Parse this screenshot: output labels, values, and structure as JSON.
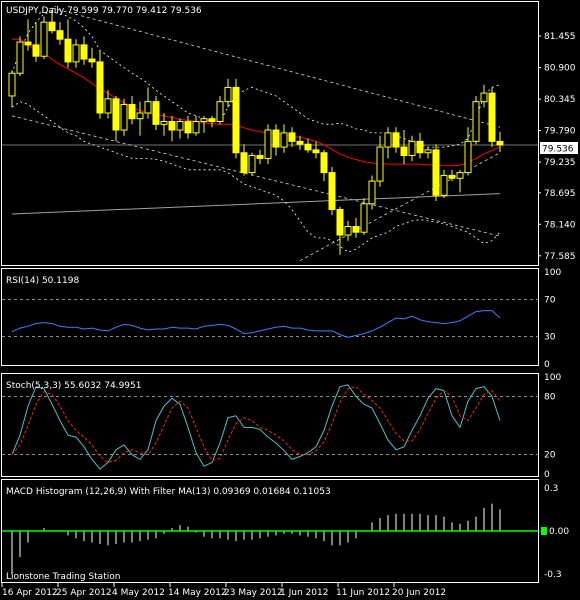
{
  "panels": {
    "main": {
      "label": "USDJPY,Daily  79.599 79.770 79.412 79.536",
      "last_price": "79.536"
    },
    "rsi": {
      "label": "RSI(14) 50.1198"
    },
    "stoch": {
      "label": "Stoch(5,3,3) 55.6032 74.9951"
    },
    "macd": {
      "label": "MACD Histogram (12,26,9) With Filter MA(13) 0.09369 0.01684 0.11053"
    }
  },
  "footer": {
    "watermark": "Lionstone Trading Station"
  },
  "colors": {
    "background": "#000000",
    "frame": "#ffffff",
    "candle": "#ffff00",
    "ma": "#ff0000",
    "bands": "#ffffff",
    "trend_gray": "#a0a0a0",
    "rsi": "#3b7dff",
    "stoch_main": "#4ec3c3",
    "stoch_signal": "#ff2020",
    "macd_hist": "#ffffff",
    "macd_filter": "#00ff00"
  },
  "chart_data": [
    {
      "type": "candlestick",
      "symbol": "USDJPY",
      "timeframe": "Daily",
      "ylim": [
        77.44,
        82.02
      ],
      "y_ticks": [
        "81.455",
        "80.900",
        "80.345",
        "79.790",
        "79.235",
        "78.695",
        "78.140",
        "77.585"
      ],
      "x_ticks": [
        "16 Apr 2012",
        "25 Apr 2012",
        "4 May 2012",
        "14 May 2012",
        "23 May 2012",
        "1 Jun 2012",
        "11 Jun 2012",
        "20 Jun 2012"
      ],
      "candles": [
        {
          "o": 80.4,
          "h": 80.85,
          "l": 80.2,
          "c": 80.8
        },
        {
          "o": 80.8,
          "h": 81.45,
          "l": 80.75,
          "c": 81.35
        },
        {
          "o": 81.35,
          "h": 81.75,
          "l": 81.2,
          "c": 81.3
        },
        {
          "o": 81.3,
          "h": 81.7,
          "l": 81.0,
          "c": 81.1
        },
        {
          "o": 81.1,
          "h": 81.8,
          "l": 81.05,
          "c": 81.7
        },
        {
          "o": 81.7,
          "h": 81.9,
          "l": 81.5,
          "c": 81.55
        },
        {
          "o": 81.55,
          "h": 81.7,
          "l": 81.3,
          "c": 81.4
        },
        {
          "o": 81.4,
          "h": 81.75,
          "l": 80.9,
          "c": 81.0
        },
        {
          "o": 81.0,
          "h": 81.4,
          "l": 80.9,
          "c": 81.3
        },
        {
          "o": 81.3,
          "h": 81.45,
          "l": 80.95,
          "c": 81.05
        },
        {
          "o": 81.05,
          "h": 81.25,
          "l": 80.9,
          "c": 81.0
        },
        {
          "o": 81.0,
          "h": 81.2,
          "l": 80.0,
          "c": 80.1
        },
        {
          "o": 80.1,
          "h": 80.5,
          "l": 80.0,
          "c": 80.35
        },
        {
          "o": 80.35,
          "h": 80.4,
          "l": 79.6,
          "c": 79.8
        },
        {
          "o": 79.8,
          "h": 80.35,
          "l": 79.7,
          "c": 80.25
        },
        {
          "o": 80.25,
          "h": 80.4,
          "l": 79.9,
          "c": 80.0
        },
        {
          "o": 80.0,
          "h": 80.3,
          "l": 79.7,
          "c": 80.1
        },
        {
          "o": 80.1,
          "h": 80.55,
          "l": 80.0,
          "c": 80.3
        },
        {
          "o": 80.3,
          "h": 80.4,
          "l": 79.8,
          "c": 79.9
        },
        {
          "o": 79.9,
          "h": 80.1,
          "l": 79.7,
          "c": 79.95
        },
        {
          "o": 79.95,
          "h": 80.05,
          "l": 79.6,
          "c": 79.8
        },
        {
          "o": 79.8,
          "h": 80.0,
          "l": 79.65,
          "c": 79.95
        },
        {
          "o": 79.95,
          "h": 80.05,
          "l": 79.65,
          "c": 79.75
        },
        {
          "o": 79.75,
          "h": 80.05,
          "l": 79.7,
          "c": 79.95
        },
        {
          "o": 79.95,
          "h": 80.05,
          "l": 79.75,
          "c": 80.0
        },
        {
          "o": 80.0,
          "h": 80.05,
          "l": 79.85,
          "c": 79.95
        },
        {
          "o": 79.95,
          "h": 80.4,
          "l": 79.9,
          "c": 80.3
        },
        {
          "o": 80.3,
          "h": 80.7,
          "l": 80.2,
          "c": 80.55
        },
        {
          "o": 80.55,
          "h": 80.7,
          "l": 79.3,
          "c": 79.4
        },
        {
          "o": 79.4,
          "h": 79.55,
          "l": 79.0,
          "c": 79.05
        },
        {
          "o": 79.05,
          "h": 79.4,
          "l": 79.0,
          "c": 79.35
        },
        {
          "o": 79.35,
          "h": 79.45,
          "l": 79.2,
          "c": 79.3
        },
        {
          "o": 79.3,
          "h": 79.9,
          "l": 79.2,
          "c": 79.8
        },
        {
          "o": 79.8,
          "h": 79.9,
          "l": 79.35,
          "c": 79.5
        },
        {
          "o": 79.5,
          "h": 79.9,
          "l": 79.4,
          "c": 79.75
        },
        {
          "o": 79.75,
          "h": 79.85,
          "l": 79.5,
          "c": 79.6
        },
        {
          "o": 79.6,
          "h": 79.7,
          "l": 79.45,
          "c": 79.55
        },
        {
          "o": 79.55,
          "h": 79.65,
          "l": 79.4,
          "c": 79.45
        },
        {
          "o": 79.45,
          "h": 79.6,
          "l": 79.3,
          "c": 79.4
        },
        {
          "o": 79.4,
          "h": 79.45,
          "l": 78.9,
          "c": 79.05
        },
        {
          "o": 79.05,
          "h": 79.15,
          "l": 78.3,
          "c": 78.4
        },
        {
          "o": 78.4,
          "h": 78.45,
          "l": 77.6,
          "c": 77.95
        },
        {
          "o": 77.95,
          "h": 78.2,
          "l": 77.85,
          "c": 78.1
        },
        {
          "o": 78.1,
          "h": 78.25,
          "l": 77.9,
          "c": 78.0
        },
        {
          "o": 78.0,
          "h": 78.6,
          "l": 77.95,
          "c": 78.5
        },
        {
          "o": 78.5,
          "h": 79.0,
          "l": 78.4,
          "c": 78.9
        },
        {
          "o": 78.9,
          "h": 79.7,
          "l": 78.8,
          "c": 79.5
        },
        {
          "o": 79.5,
          "h": 79.85,
          "l": 79.3,
          "c": 79.75
        },
        {
          "o": 79.75,
          "h": 79.85,
          "l": 79.4,
          "c": 79.5
        },
        {
          "o": 79.5,
          "h": 79.8,
          "l": 79.2,
          "c": 79.35
        },
        {
          "o": 79.35,
          "h": 79.7,
          "l": 79.25,
          "c": 79.6
        },
        {
          "o": 79.6,
          "h": 79.75,
          "l": 79.3,
          "c": 79.4
        },
        {
          "o": 79.4,
          "h": 79.5,
          "l": 79.3,
          "c": 79.45
        },
        {
          "o": 79.45,
          "h": 79.55,
          "l": 78.55,
          "c": 78.65
        },
        {
          "o": 78.65,
          "h": 79.1,
          "l": 78.6,
          "c": 79.0
        },
        {
          "o": 79.0,
          "h": 79.1,
          "l": 78.9,
          "c": 78.95
        },
        {
          "o": 78.95,
          "h": 79.1,
          "l": 78.7,
          "c": 79.05
        },
        {
          "o": 79.05,
          "h": 79.85,
          "l": 79.0,
          "c": 79.6
        },
        {
          "o": 79.6,
          "h": 80.4,
          "l": 79.55,
          "c": 80.3
        },
        {
          "o": 80.3,
          "h": 80.6,
          "l": 80.2,
          "c": 80.45
        },
        {
          "o": 80.45,
          "h": 80.55,
          "l": 79.5,
          "c": 79.6
        },
        {
          "o": 79.599,
          "h": 79.77,
          "l": 79.412,
          "c": 79.536
        }
      ],
      "ma_red": [
        81.4,
        81.4,
        81.3,
        81.2,
        81.15,
        81.05,
        80.95,
        80.88,
        80.8,
        80.72,
        80.62,
        80.52,
        80.45,
        80.36,
        80.28,
        80.2,
        80.14,
        80.1,
        80.07,
        80.05,
        80.02,
        79.99,
        79.97,
        79.95,
        79.93,
        79.91,
        79.9,
        79.9,
        79.88,
        79.84,
        79.8,
        79.77,
        79.75,
        79.73,
        79.71,
        79.69,
        79.67,
        79.64,
        79.6,
        79.54,
        79.46,
        79.38,
        79.32,
        79.28,
        79.24,
        79.22,
        79.21,
        79.2,
        79.2,
        79.2,
        79.2,
        79.2,
        79.19,
        79.18,
        79.17,
        79.17,
        79.18,
        79.23,
        79.3,
        79.38,
        79.44,
        79.5
      ],
      "band_upper": [
        80.8,
        81.2,
        81.5,
        81.7,
        81.85,
        81.88,
        81.85,
        81.8,
        81.72,
        81.6,
        81.45,
        81.2,
        81.1,
        81.0,
        80.9,
        80.8,
        80.72,
        80.62,
        80.5,
        80.4,
        80.3,
        80.2,
        80.1,
        80.05,
        80.0,
        79.95,
        79.95,
        80.2,
        80.4,
        80.5,
        80.55,
        80.5,
        80.45,
        80.4,
        80.3,
        80.2,
        80.1,
        80.0,
        79.95,
        79.9,
        79.9,
        79.92,
        79.88,
        79.82,
        79.8,
        79.75,
        79.75,
        79.75,
        79.7,
        79.65,
        79.6,
        79.55,
        79.5,
        79.5,
        79.5,
        79.52,
        79.55,
        79.65,
        80.0,
        80.4,
        80.55,
        80.6
      ],
      "band_lower": [
        80.2,
        80.3,
        80.25,
        80.15,
        80.05,
        79.95,
        79.85,
        79.75,
        79.7,
        79.6,
        79.55,
        79.5,
        79.45,
        79.4,
        79.35,
        79.3,
        79.3,
        79.3,
        79.28,
        79.25,
        79.2,
        79.15,
        79.1,
        79.1,
        79.1,
        79.1,
        79.1,
        79.05,
        78.95,
        78.85,
        78.8,
        78.75,
        78.7,
        78.65,
        78.55,
        78.4,
        78.2,
        78.0,
        77.9,
        77.9,
        77.85,
        77.75,
        77.65,
        77.7,
        77.8,
        77.9,
        77.95,
        78.0,
        78.1,
        78.15,
        78.2,
        78.22,
        78.2,
        78.18,
        78.15,
        78.1,
        78.05,
        78.0,
        77.9,
        77.8,
        77.85,
        78.0
      ],
      "gray_line": [
        [
          0,
          78.32
        ],
        [
          61,
          78.68
        ]
      ],
      "trend_dashed": [
        [
          [
            0,
            80.05
          ],
          [
            61,
            77.93
          ]
        ],
        [
          [
            5,
            81.95
          ],
          [
            61,
            79.85
          ]
        ],
        [
          [
            36,
            77.5
          ],
          [
            61,
            79.4
          ]
        ]
      ]
    },
    {
      "type": "line",
      "name": "RSI(14)",
      "ylim": [
        0,
        100
      ],
      "levels": [
        30,
        70
      ],
      "y_ticks": [
        "100",
        "70",
        "30",
        "0"
      ],
      "values": [
        35,
        39,
        41,
        44,
        45,
        44,
        41,
        40,
        40,
        38,
        39,
        37,
        36,
        40,
        43,
        42,
        39,
        37,
        38,
        38,
        40,
        39,
        39,
        38,
        41,
        42,
        43,
        42,
        38,
        33,
        34,
        36,
        38,
        40,
        41,
        39,
        39,
        37,
        36,
        36,
        36,
        32,
        29,
        31,
        33,
        36,
        40,
        45,
        50,
        49,
        52,
        48,
        46,
        45,
        44,
        45,
        47,
        52,
        57,
        58,
        58,
        50
      ]
    },
    {
      "type": "line",
      "name": "Stoch(5,3,3)",
      "ylim": [
        0,
        100
      ],
      "levels": [
        20,
        80
      ],
      "y_ticks": [
        "100",
        "80",
        "20",
        "0"
      ],
      "series": [
        {
          "name": "main",
          "values": [
            20,
            40,
            70,
            90,
            88,
            72,
            55,
            40,
            38,
            28,
            15,
            5,
            12,
            25,
            30,
            20,
            15,
            25,
            55,
            70,
            78,
            72,
            48,
            22,
            8,
            12,
            32,
            58,
            60,
            48,
            48,
            46,
            38,
            32,
            24,
            15,
            18,
            22,
            28,
            45,
            70,
            90,
            92,
            80,
            72,
            68,
            52,
            35,
            25,
            28,
            45,
            60,
            78,
            88,
            86,
            60,
            48,
            75,
            88,
            90,
            80,
            55
          ]
        },
        {
          "name": "signal",
          "values": [
            20,
            30,
            50,
            72,
            85,
            82,
            70,
            55,
            45,
            38,
            30,
            18,
            12,
            14,
            22,
            25,
            22,
            20,
            32,
            50,
            68,
            75,
            68,
            48,
            28,
            14,
            16,
            35,
            52,
            58,
            55,
            48,
            45,
            40,
            34,
            25,
            20,
            20,
            24,
            33,
            52,
            74,
            88,
            90,
            82,
            76,
            68,
            55,
            42,
            34,
            34,
            46,
            62,
            78,
            86,
            80,
            60,
            55,
            68,
            82,
            86,
            75
          ]
        }
      ]
    },
    {
      "type": "bar",
      "name": "MACD Histogram (12,26,9)",
      "ylim": [
        -0.34,
        0.34
      ],
      "zero_line": 0,
      "y_ticks": [
        "0.3",
        "0.00",
        "-0.3"
      ],
      "values": [
        -0.3,
        -0.18,
        -0.08,
        0,
        0.02,
        0,
        0,
        -0.03,
        -0.05,
        -0.07,
        -0.08,
        -0.09,
        -0.1,
        -0.09,
        -0.08,
        -0.08,
        -0.07,
        -0.06,
        -0.05,
        -0.02,
        0.02,
        0.04,
        0.03,
        -0.01,
        -0.04,
        -0.05,
        -0.05,
        -0.06,
        -0.07,
        -0.06,
        -0.06,
        -0.05,
        -0.04,
        -0.03,
        -0.02,
        -0.02,
        -0.03,
        -0.04,
        -0.05,
        -0.07,
        -0.1,
        -0.1,
        -0.08,
        -0.05,
        0,
        0.06,
        0.09,
        0.11,
        0.12,
        0.12,
        0.12,
        0.12,
        0.11,
        0.11,
        0.1,
        0.06,
        0.05,
        0.07,
        0.1,
        0.16,
        0.19,
        0.15
      ]
    }
  ]
}
